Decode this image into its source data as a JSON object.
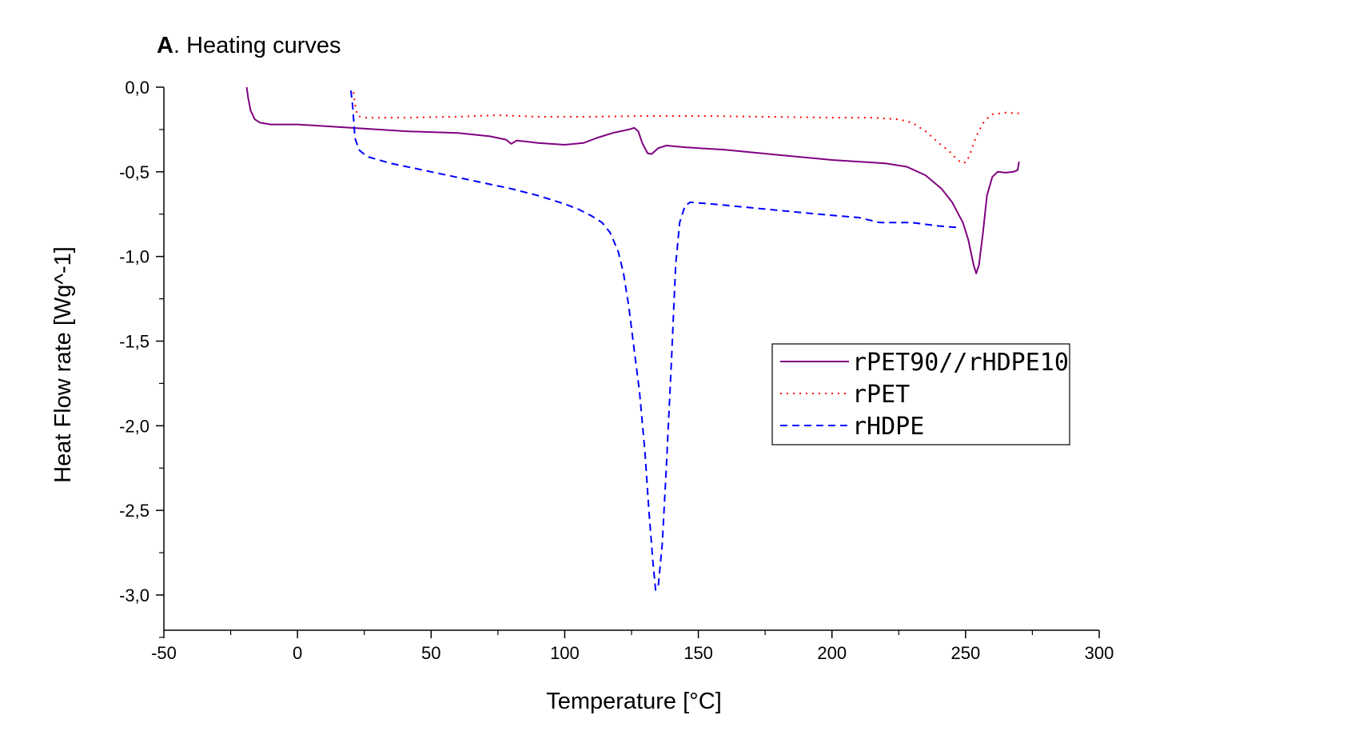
{
  "chart_data": {
    "type": "line",
    "title_bold": "A",
    "title_rest": ". Heating curves",
    "xlabel": "Temperature [°C]",
    "ylabel": "Heat Flow rate [Wg^-1]",
    "xlim": [
      -50,
      300
    ],
    "ylim": [
      -3.2,
      0.0
    ],
    "x_ticks": [
      -50,
      0,
      50,
      100,
      150,
      200,
      250,
      300
    ],
    "x_tick_labels": [
      "-50",
      "0",
      "50",
      "100",
      "150",
      "200",
      "250",
      "300"
    ],
    "y_ticks": [
      0.0,
      -0.5,
      -1.0,
      -1.5,
      -2.0,
      -2.5,
      -3.0
    ],
    "y_tick_labels": [
      "0,0",
      "-0,5",
      "-1,0",
      "-1,5",
      "-2,0",
      "-2,5",
      "-3,0"
    ],
    "grid": false,
    "legend_position": "center-right",
    "series": [
      {
        "name": "rPET90//rHDPE10",
        "color": "#800080",
        "style": "solid",
        "points": [
          [
            -19,
            0.0
          ],
          [
            -18.5,
            -0.06
          ],
          [
            -17.5,
            -0.14
          ],
          [
            -16,
            -0.19
          ],
          [
            -14,
            -0.21
          ],
          [
            -10,
            -0.22
          ],
          [
            0,
            -0.22
          ],
          [
            20,
            -0.24
          ],
          [
            40,
            -0.26
          ],
          [
            60,
            -0.27
          ],
          [
            72,
            -0.29
          ],
          [
            78,
            -0.31
          ],
          [
            80,
            -0.335
          ],
          [
            82,
            -0.315
          ],
          [
            85,
            -0.32
          ],
          [
            90,
            -0.33
          ],
          [
            100,
            -0.34
          ],
          [
            107,
            -0.33
          ],
          [
            112,
            -0.3
          ],
          [
            118,
            -0.27
          ],
          [
            124,
            -0.25
          ],
          [
            126,
            -0.24
          ],
          [
            127.5,
            -0.26
          ],
          [
            129,
            -0.33
          ],
          [
            131,
            -0.39
          ],
          [
            132.5,
            -0.395
          ],
          [
            135,
            -0.36
          ],
          [
            138,
            -0.345
          ],
          [
            145,
            -0.355
          ],
          [
            160,
            -0.37
          ],
          [
            180,
            -0.4
          ],
          [
            200,
            -0.43
          ],
          [
            220,
            -0.45
          ],
          [
            228,
            -0.47
          ],
          [
            235,
            -0.52
          ],
          [
            241,
            -0.6
          ],
          [
            245,
            -0.68
          ],
          [
            249,
            -0.8
          ],
          [
            251,
            -0.9
          ],
          [
            253,
            -1.05
          ],
          [
            254,
            -1.1
          ],
          [
            255,
            -1.05
          ],
          [
            256.5,
            -0.86
          ],
          [
            258,
            -0.64
          ],
          [
            260,
            -0.53
          ],
          [
            262,
            -0.5
          ],
          [
            265,
            -0.505
          ],
          [
            268,
            -0.5
          ],
          [
            269.5,
            -0.49
          ],
          [
            270,
            -0.44
          ]
        ]
      },
      {
        "name": "rPET",
        "color": "#ff0000",
        "style": "dotted",
        "points": [
          [
            21,
            -0.03
          ],
          [
            21.5,
            -0.1
          ],
          [
            22.5,
            -0.17
          ],
          [
            25,
            -0.18
          ],
          [
            40,
            -0.18
          ],
          [
            60,
            -0.175
          ],
          [
            75,
            -0.165
          ],
          [
            90,
            -0.175
          ],
          [
            110,
            -0.175
          ],
          [
            130,
            -0.17
          ],
          [
            150,
            -0.17
          ],
          [
            175,
            -0.175
          ],
          [
            200,
            -0.18
          ],
          [
            215,
            -0.18
          ],
          [
            225,
            -0.19
          ],
          [
            230,
            -0.21
          ],
          [
            235,
            -0.26
          ],
          [
            240,
            -0.33
          ],
          [
            244,
            -0.38
          ],
          [
            247,
            -0.43
          ],
          [
            249,
            -0.45
          ],
          [
            250.5,
            -0.44
          ],
          [
            252,
            -0.38
          ],
          [
            254,
            -0.29
          ],
          [
            257,
            -0.2
          ],
          [
            260,
            -0.16
          ],
          [
            265,
            -0.15
          ],
          [
            270,
            -0.155
          ]
        ]
      },
      {
        "name": "rHDPE",
        "color": "#0000ff",
        "style": "dashed",
        "points": [
          [
            20,
            -0.02
          ],
          [
            20.7,
            -0.12
          ],
          [
            21.5,
            -0.3
          ],
          [
            23,
            -0.37
          ],
          [
            26,
            -0.41
          ],
          [
            35,
            -0.45
          ],
          [
            50,
            -0.5
          ],
          [
            65,
            -0.55
          ],
          [
            80,
            -0.6
          ],
          [
            90,
            -0.64
          ],
          [
            100,
            -0.69
          ],
          [
            105,
            -0.72
          ],
          [
            110,
            -0.76
          ],
          [
            114,
            -0.8
          ],
          [
            117,
            -0.86
          ],
          [
            120,
            -0.97
          ],
          [
            122,
            -1.1
          ],
          [
            124,
            -1.3
          ],
          [
            126,
            -1.55
          ],
          [
            128,
            -1.8
          ],
          [
            130,
            -2.15
          ],
          [
            131.5,
            -2.5
          ],
          [
            133,
            -2.8
          ],
          [
            134,
            -2.97
          ],
          [
            135,
            -2.95
          ],
          [
            136.5,
            -2.7
          ],
          [
            138,
            -2.25
          ],
          [
            140,
            -1.6
          ],
          [
            141.5,
            -1.05
          ],
          [
            143,
            -0.8
          ],
          [
            145,
            -0.7
          ],
          [
            147,
            -0.68
          ],
          [
            155,
            -0.69
          ],
          [
            175,
            -0.72
          ],
          [
            195,
            -0.75
          ],
          [
            210,
            -0.77
          ],
          [
            218,
            -0.8
          ],
          [
            230,
            -0.8
          ],
          [
            240,
            -0.82
          ],
          [
            248,
            -0.83
          ]
        ]
      }
    ]
  }
}
